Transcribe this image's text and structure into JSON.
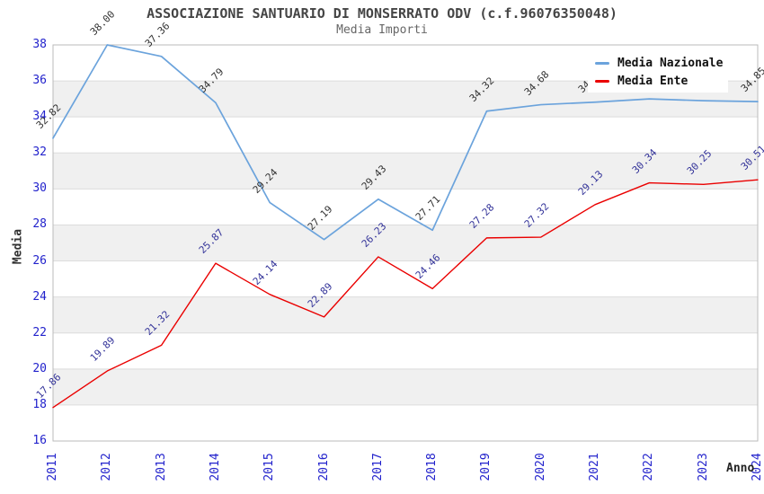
{
  "title": "ASSOCIAZIONE SANTUARIO DI MONSERRATO ODV (c.f.96076350048)",
  "subtitle": "Media Importi",
  "legend": {
    "items": [
      "Media Nazionale",
      "Media Ente"
    ]
  },
  "colors": {
    "nazionale_line": "#6ba3dc",
    "ente_line": "#ea0000",
    "axis_tick_text": "#2222cc",
    "nazionale_label_text": "#333333",
    "ente_label_text": "#333399",
    "band_fill": "#f0f0f0",
    "gridline": "#dcdcdc",
    "plot_border": "#bbbbbb"
  },
  "chart_data": {
    "type": "line",
    "title": "ASSOCIAZIONE SANTUARIO DI MONSERRATO ODV (c.f.96076350048)",
    "subtitle": "Media Importi",
    "xlabel": "Anno",
    "ylabel": "Media",
    "x": [
      2011,
      2012,
      2013,
      2014,
      2015,
      2016,
      2017,
      2018,
      2019,
      2020,
      2021,
      2022,
      2023,
      2024
    ],
    "series": [
      {
        "name": "Media Nazionale",
        "color": "#6ba3dc",
        "label_color": "#333333",
        "values": [
          32.82,
          38.0,
          37.36,
          34.79,
          29.24,
          27.19,
          29.43,
          27.71,
          34.32,
          34.68,
          34.82,
          35.0,
          34.9,
          34.85
        ]
      },
      {
        "name": "Media Ente",
        "color": "#ea0000",
        "label_color": "#333399",
        "values": [
          17.86,
          19.89,
          21.32,
          25.87,
          24.14,
          22.89,
          26.23,
          24.46,
          27.28,
          27.32,
          29.13,
          30.34,
          30.25,
          30.51
        ]
      }
    ],
    "ylim": [
      16,
      38
    ],
    "ytick_step": 2,
    "grid": "horizontal, alternating gray bands every 2 units",
    "legend_position": "top-right",
    "point_labels": "values shown rotated 45deg at each point; 2022/2023 Media Nazionale labels hidden behind legend"
  }
}
